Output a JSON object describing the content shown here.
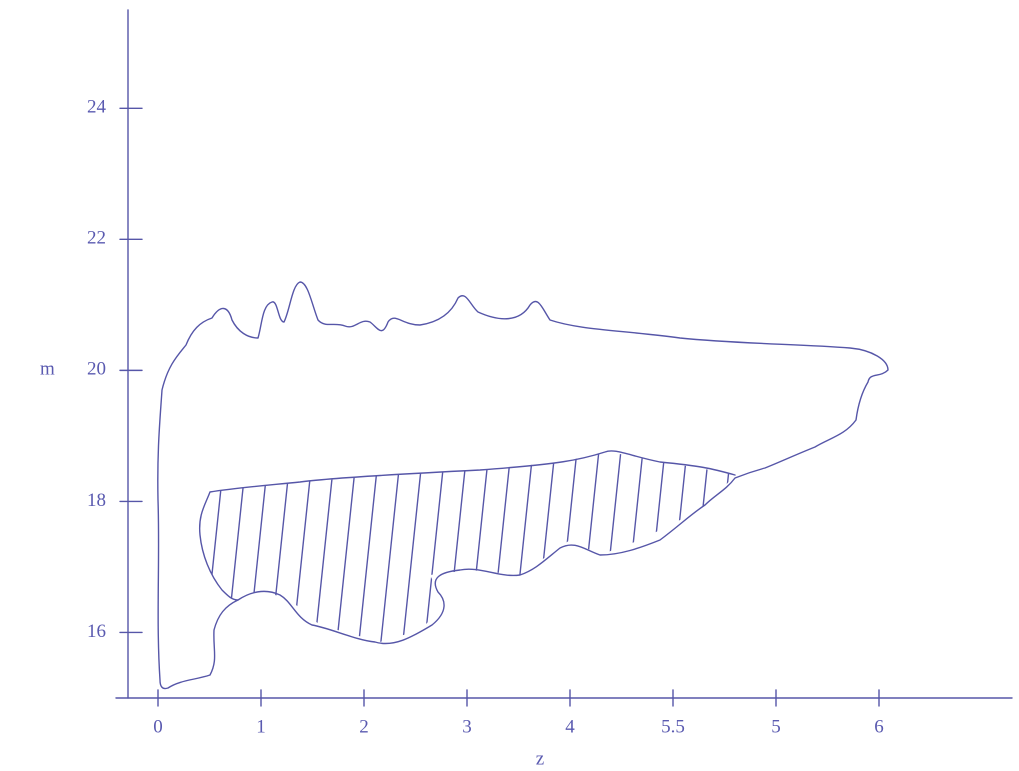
{
  "chart_data": {
    "type": "region",
    "x_label": "z",
    "y_label": "m",
    "categories": [
      "0",
      "1",
      "2",
      "3",
      "4",
      "5.5",
      "5",
      "6"
    ],
    "ylim": [
      15,
      25.5
    ],
    "yticks": [
      16,
      18,
      20,
      22,
      24
    ]
  }
}
